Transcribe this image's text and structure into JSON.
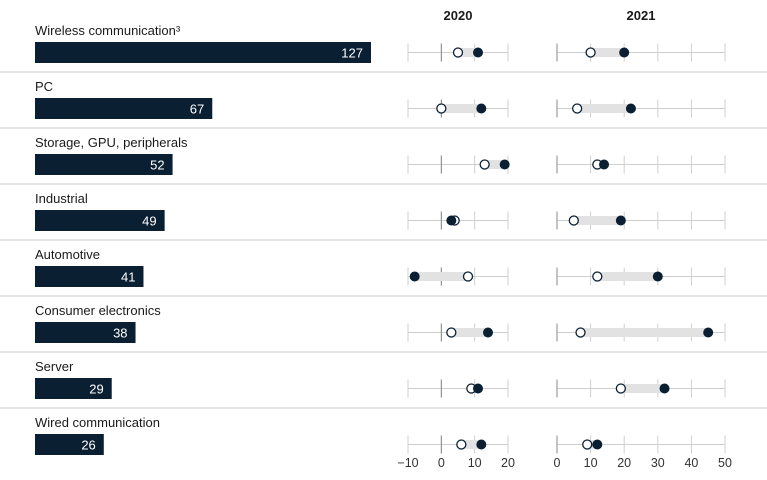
{
  "chart_data": {
    "type": "bar",
    "categories": [
      "Wireless communication³",
      "PC",
      "Storage, GPU, peripherals",
      "Industrial",
      "Automotive",
      "Consumer electronics",
      "Server",
      "Wired communication"
    ],
    "bar_values": [
      127,
      67,
      52,
      49,
      41,
      38,
      29,
      26
    ],
    "panels": [
      {
        "title": "2020",
        "xlim": [
          -10,
          20
        ],
        "ticks": [
          -10,
          0,
          10,
          20
        ],
        "tick_labels": [
          "−10",
          "0",
          "10",
          "20"
        ],
        "open_values": [
          5,
          0,
          13,
          4,
          8,
          3,
          9,
          6
        ],
        "filled_values": [
          11,
          12,
          19,
          3,
          -8,
          14,
          11,
          12
        ]
      },
      {
        "title": "2021",
        "xlim": [
          0,
          50
        ],
        "ticks": [
          0,
          10,
          20,
          30,
          40,
          50
        ],
        "tick_labels": [
          "0",
          "10",
          "20",
          "30",
          "40",
          "50"
        ],
        "open_values": [
          10,
          6,
          12,
          5,
          12,
          7,
          19,
          9
        ],
        "filled_values": [
          20,
          22,
          14,
          19,
          30,
          45,
          32,
          12
        ]
      }
    ],
    "colors": {
      "bar": "#0b1f33",
      "marker": "#0b1f33",
      "range": "#e2e2e2",
      "axis": "#cfcfcf",
      "separator": "#cccccc"
    }
  }
}
